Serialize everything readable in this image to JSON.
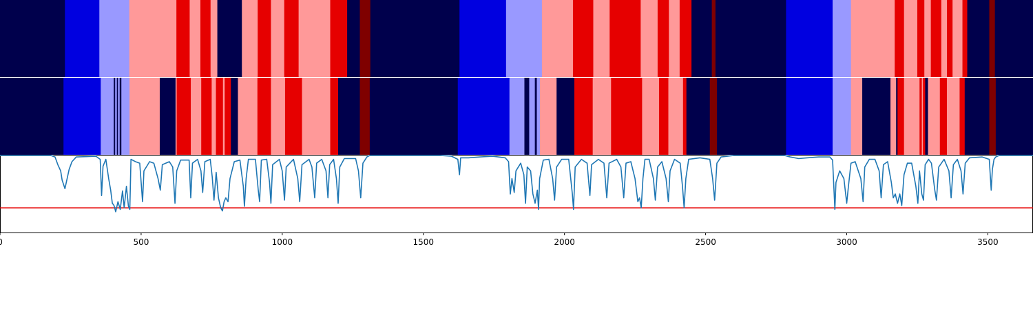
{
  "chart_data": {
    "type": "segmentation-strips-with-line",
    "xlim": [
      0,
      3660
    ],
    "x_ticks": [
      0,
      500,
      1000,
      1500,
      2000,
      2500,
      3000,
      3500
    ],
    "tick_labels": [
      "0",
      "500",
      "1000",
      "1500",
      "2000",
      "2500",
      "3000",
      "3500"
    ],
    "colors": {
      "navy": "#00004c",
      "blue": "#0000e0",
      "lightblue": "#9999ff",
      "pink": "#ff9999",
      "red": "#e60000",
      "darkred": "#7f0000",
      "line": "#1f77b4",
      "threshold": "#e60000"
    },
    "strip_top": [
      [
        0,
        230,
        "navy"
      ],
      [
        230,
        352,
        "blue"
      ],
      [
        352,
        458,
        "lightblue"
      ],
      [
        458,
        625,
        "pink"
      ],
      [
        625,
        672,
        "red"
      ],
      [
        672,
        710,
        "pink"
      ],
      [
        710,
        746,
        "red"
      ],
      [
        746,
        770,
        "pink"
      ],
      [
        770,
        857,
        "navy"
      ],
      [
        857,
        913,
        "pink"
      ],
      [
        913,
        960,
        "red"
      ],
      [
        960,
        1007,
        "pink"
      ],
      [
        1007,
        1058,
        "red"
      ],
      [
        1058,
        1170,
        "pink"
      ],
      [
        1170,
        1230,
        "red"
      ],
      [
        1230,
        1275,
        "navy"
      ],
      [
        1275,
        1312,
        "darkred"
      ],
      [
        1312,
        1628,
        "navy"
      ],
      [
        1628,
        1793,
        "blue"
      ],
      [
        1793,
        1920,
        "lightblue"
      ],
      [
        1920,
        2030,
        "pink"
      ],
      [
        2030,
        2102,
        "red"
      ],
      [
        2102,
        2160,
        "pink"
      ],
      [
        2160,
        2270,
        "red"
      ],
      [
        2270,
        2330,
        "pink"
      ],
      [
        2330,
        2370,
        "red"
      ],
      [
        2370,
        2408,
        "pink"
      ],
      [
        2408,
        2450,
        "red"
      ],
      [
        2450,
        2522,
        "navy"
      ],
      [
        2522,
        2535,
        "darkred"
      ],
      [
        2535,
        2785,
        "navy"
      ],
      [
        2785,
        2950,
        "blue"
      ],
      [
        2950,
        3015,
        "lightblue"
      ],
      [
        3015,
        3170,
        "pink"
      ],
      [
        3170,
        3203,
        "red"
      ],
      [
        3203,
        3250,
        "pink"
      ],
      [
        3250,
        3275,
        "red"
      ],
      [
        3275,
        3298,
        "pink"
      ],
      [
        3298,
        3335,
        "red"
      ],
      [
        3335,
        3355,
        "pink"
      ],
      [
        3355,
        3375,
        "red"
      ],
      [
        3375,
        3410,
        "pink"
      ],
      [
        3410,
        3427,
        "red"
      ],
      [
        3427,
        3505,
        "navy"
      ],
      [
        3505,
        3525,
        "darkred"
      ],
      [
        3525,
        3660,
        "navy"
      ]
    ],
    "strip_bottom": [
      [
        0,
        225,
        "navy"
      ],
      [
        225,
        357,
        "blue"
      ],
      [
        357,
        403,
        "lightblue"
      ],
      [
        403,
        408,
        "navy"
      ],
      [
        408,
        414,
        "lightblue"
      ],
      [
        414,
        418,
        "navy"
      ],
      [
        418,
        424,
        "lightblue"
      ],
      [
        424,
        430,
        "navy"
      ],
      [
        430,
        459,
        "lightblue"
      ],
      [
        459,
        566,
        "pink"
      ],
      [
        566,
        622,
        "navy"
      ],
      [
        622,
        626,
        "pink"
      ],
      [
        626,
        676,
        "red"
      ],
      [
        676,
        713,
        "pink"
      ],
      [
        713,
        750,
        "red"
      ],
      [
        750,
        765,
        "pink"
      ],
      [
        765,
        790,
        "red"
      ],
      [
        790,
        796,
        "pink"
      ],
      [
        796,
        818,
        "red"
      ],
      [
        818,
        843,
        "navy"
      ],
      [
        843,
        912,
        "pink"
      ],
      [
        912,
        960,
        "red"
      ],
      [
        960,
        1010,
        "pink"
      ],
      [
        1010,
        1070,
        "red"
      ],
      [
        1070,
        1170,
        "pink"
      ],
      [
        1170,
        1198,
        "red"
      ],
      [
        1198,
        1275,
        "navy"
      ],
      [
        1275,
        1310,
        "darkred"
      ],
      [
        1310,
        1622,
        "navy"
      ],
      [
        1622,
        1805,
        "blue"
      ],
      [
        1805,
        1858,
        "lightblue"
      ],
      [
        1858,
        1875,
        "navy"
      ],
      [
        1875,
        1895,
        "lightblue"
      ],
      [
        1895,
        1902,
        "navy"
      ],
      [
        1902,
        1913,
        "lightblue"
      ],
      [
        1913,
        1972,
        "pink"
      ],
      [
        1972,
        2035,
        "navy"
      ],
      [
        2035,
        2100,
        "red"
      ],
      [
        2100,
        2165,
        "pink"
      ],
      [
        2165,
        2275,
        "red"
      ],
      [
        2275,
        2335,
        "pink"
      ],
      [
        2335,
        2368,
        "red"
      ],
      [
        2368,
        2420,
        "pink"
      ],
      [
        2420,
        2432,
        "red"
      ],
      [
        2432,
        2515,
        "navy"
      ],
      [
        2515,
        2540,
        "darkred"
      ],
      [
        2540,
        2785,
        "navy"
      ],
      [
        2785,
        2950,
        "blue"
      ],
      [
        2950,
        3015,
        "lightblue"
      ],
      [
        3015,
        3055,
        "pink"
      ],
      [
        3055,
        3155,
        "navy"
      ],
      [
        3155,
        3175,
        "pink"
      ],
      [
        3175,
        3180,
        "navy"
      ],
      [
        3180,
        3203,
        "red"
      ],
      [
        3203,
        3258,
        "pink"
      ],
      [
        3258,
        3266,
        "red"
      ],
      [
        3266,
        3270,
        "pink"
      ],
      [
        3270,
        3278,
        "red"
      ],
      [
        3278,
        3288,
        "navy"
      ],
      [
        3288,
        3330,
        "pink"
      ],
      [
        3330,
        3355,
        "red"
      ],
      [
        3355,
        3400,
        "pink"
      ],
      [
        3400,
        3418,
        "red"
      ],
      [
        3418,
        3505,
        "navy"
      ],
      [
        3505,
        3528,
        "darkred"
      ],
      [
        3528,
        3660,
        "navy"
      ]
    ],
    "threshold_y": 0.68,
    "line_points": [
      [
        0,
        0.0
      ],
      [
        180,
        0.0
      ],
      [
        195,
        0.02
      ],
      [
        205,
        0.12
      ],
      [
        215,
        0.2
      ],
      [
        220,
        0.32
      ],
      [
        230,
        0.43
      ],
      [
        245,
        0.18
      ],
      [
        255,
        0.08
      ],
      [
        270,
        0.02
      ],
      [
        340,
        0.01
      ],
      [
        355,
        0.05
      ],
      [
        360,
        0.52
      ],
      [
        365,
        0.14
      ],
      [
        375,
        0.05
      ],
      [
        385,
        0.3
      ],
      [
        392,
        0.45
      ],
      [
        398,
        0.62
      ],
      [
        404,
        0.65
      ],
      [
        410,
        0.73
      ],
      [
        418,
        0.6
      ],
      [
        426,
        0.7
      ],
      [
        434,
        0.46
      ],
      [
        440,
        0.68
      ],
      [
        448,
        0.4
      ],
      [
        455,
        0.66
      ],
      [
        460,
        0.7
      ],
      [
        464,
        0.05
      ],
      [
        480,
        0.08
      ],
      [
        495,
        0.1
      ],
      [
        505,
        0.6
      ],
      [
        510,
        0.2
      ],
      [
        530,
        0.08
      ],
      [
        545,
        0.1
      ],
      [
        560,
        0.3
      ],
      [
        568,
        0.45
      ],
      [
        575,
        0.12
      ],
      [
        600,
        0.08
      ],
      [
        612,
        0.15
      ],
      [
        620,
        0.62
      ],
      [
        626,
        0.2
      ],
      [
        640,
        0.06
      ],
      [
        670,
        0.06
      ],
      [
        676,
        0.55
      ],
      [
        682,
        0.1
      ],
      [
        700,
        0.05
      ],
      [
        712,
        0.2
      ],
      [
        718,
        0.48
      ],
      [
        726,
        0.08
      ],
      [
        745,
        0.05
      ],
      [
        752,
        0.28
      ],
      [
        758,
        0.58
      ],
      [
        766,
        0.22
      ],
      [
        774,
        0.55
      ],
      [
        782,
        0.68
      ],
      [
        788,
        0.72
      ],
      [
        794,
        0.6
      ],
      [
        800,
        0.55
      ],
      [
        808,
        0.6
      ],
      [
        815,
        0.3
      ],
      [
        830,
        0.08
      ],
      [
        850,
        0.06
      ],
      [
        862,
        0.4
      ],
      [
        866,
        0.66
      ],
      [
        872,
        0.3
      ],
      [
        880,
        0.05
      ],
      [
        905,
        0.05
      ],
      [
        915,
        0.45
      ],
      [
        920,
        0.6
      ],
      [
        926,
        0.06
      ],
      [
        945,
        0.05
      ],
      [
        955,
        0.35
      ],
      [
        960,
        0.62
      ],
      [
        966,
        0.12
      ],
      [
        990,
        0.05
      ],
      [
        1000,
        0.2
      ],
      [
        1008,
        0.58
      ],
      [
        1014,
        0.15
      ],
      [
        1040,
        0.05
      ],
      [
        1055,
        0.3
      ],
      [
        1062,
        0.6
      ],
      [
        1070,
        0.12
      ],
      [
        1095,
        0.05
      ],
      [
        1105,
        0.15
      ],
      [
        1115,
        0.55
      ],
      [
        1122,
        0.1
      ],
      [
        1140,
        0.05
      ],
      [
        1155,
        0.2
      ],
      [
        1162,
        0.55
      ],
      [
        1168,
        0.12
      ],
      [
        1182,
        0.05
      ],
      [
        1192,
        0.3
      ],
      [
        1198,
        0.62
      ],
      [
        1204,
        0.15
      ],
      [
        1220,
        0.04
      ],
      [
        1260,
        0.04
      ],
      [
        1270,
        0.2
      ],
      [
        1278,
        0.55
      ],
      [
        1286,
        0.1
      ],
      [
        1300,
        0.02
      ],
      [
        1310,
        0.0
      ],
      [
        1560,
        0.0
      ],
      [
        1600,
        0.01
      ],
      [
        1622,
        0.05
      ],
      [
        1628,
        0.25
      ],
      [
        1632,
        0.03
      ],
      [
        1660,
        0.03
      ],
      [
        1700,
        0.02
      ],
      [
        1745,
        0.01
      ],
      [
        1790,
        0.03
      ],
      [
        1802,
        0.08
      ],
      [
        1808,
        0.5
      ],
      [
        1814,
        0.3
      ],
      [
        1822,
        0.48
      ],
      [
        1828,
        0.2
      ],
      [
        1845,
        0.1
      ],
      [
        1856,
        0.25
      ],
      [
        1862,
        0.62
      ],
      [
        1868,
        0.15
      ],
      [
        1880,
        0.2
      ],
      [
        1888,
        0.5
      ],
      [
        1896,
        0.62
      ],
      [
        1904,
        0.45
      ],
      [
        1908,
        0.7
      ],
      [
        1912,
        0.3
      ],
      [
        1925,
        0.06
      ],
      [
        1945,
        0.05
      ],
      [
        1958,
        0.3
      ],
      [
        1965,
        0.58
      ],
      [
        1972,
        0.15
      ],
      [
        1990,
        0.05
      ],
      [
        2015,
        0.05
      ],
      [
        2028,
        0.5
      ],
      [
        2032,
        0.7
      ],
      [
        2038,
        0.15
      ],
      [
        2060,
        0.05
      ],
      [
        2080,
        0.1
      ],
      [
        2090,
        0.52
      ],
      [
        2096,
        0.12
      ],
      [
        2120,
        0.05
      ],
      [
        2140,
        0.1
      ],
      [
        2150,
        0.55
      ],
      [
        2158,
        0.1
      ],
      [
        2185,
        0.05
      ],
      [
        2200,
        0.15
      ],
      [
        2210,
        0.55
      ],
      [
        2218,
        0.1
      ],
      [
        2235,
        0.08
      ],
      [
        2250,
        0.3
      ],
      [
        2260,
        0.6
      ],
      [
        2266,
        0.55
      ],
      [
        2272,
        0.68
      ],
      [
        2278,
        0.3
      ],
      [
        2285,
        0.05
      ],
      [
        2300,
        0.05
      ],
      [
        2315,
        0.3
      ],
      [
        2322,
        0.58
      ],
      [
        2330,
        0.15
      ],
      [
        2345,
        0.08
      ],
      [
        2360,
        0.3
      ],
      [
        2368,
        0.6
      ],
      [
        2374,
        0.2
      ],
      [
        2390,
        0.05
      ],
      [
        2410,
        0.1
      ],
      [
        2418,
        0.4
      ],
      [
        2424,
        0.68
      ],
      [
        2430,
        0.3
      ],
      [
        2440,
        0.05
      ],
      [
        2480,
        0.03
      ],
      [
        2515,
        0.05
      ],
      [
        2525,
        0.3
      ],
      [
        2532,
        0.58
      ],
      [
        2540,
        0.1
      ],
      [
        2555,
        0.02
      ],
      [
        2600,
        0.0
      ],
      [
        2780,
        0.0
      ],
      [
        2800,
        0.02
      ],
      [
        2830,
        0.04
      ],
      [
        2860,
        0.03
      ],
      [
        2900,
        0.02
      ],
      [
        2940,
        0.02
      ],
      [
        2950,
        0.06
      ],
      [
        2958,
        0.7
      ],
      [
        2962,
        0.35
      ],
      [
        2975,
        0.2
      ],
      [
        2990,
        0.3
      ],
      [
        3000,
        0.62
      ],
      [
        3006,
        0.4
      ],
      [
        3015,
        0.1
      ],
      [
        3030,
        0.08
      ],
      [
        3050,
        0.3
      ],
      [
        3058,
        0.6
      ],
      [
        3064,
        0.15
      ],
      [
        3080,
        0.05
      ],
      [
        3100,
        0.05
      ],
      [
        3115,
        0.2
      ],
      [
        3122,
        0.55
      ],
      [
        3130,
        0.12
      ],
      [
        3145,
        0.08
      ],
      [
        3158,
        0.35
      ],
      [
        3165,
        0.55
      ],
      [
        3172,
        0.5
      ],
      [
        3180,
        0.62
      ],
      [
        3188,
        0.5
      ],
      [
        3195,
        0.65
      ],
      [
        3203,
        0.25
      ],
      [
        3215,
        0.1
      ],
      [
        3230,
        0.1
      ],
      [
        3245,
        0.4
      ],
      [
        3252,
        0.62
      ],
      [
        3258,
        0.2
      ],
      [
        3266,
        0.5
      ],
      [
        3272,
        0.58
      ],
      [
        3278,
        0.12
      ],
      [
        3290,
        0.05
      ],
      [
        3300,
        0.1
      ],
      [
        3312,
        0.45
      ],
      [
        3318,
        0.58
      ],
      [
        3326,
        0.15
      ],
      [
        3345,
        0.05
      ],
      [
        3362,
        0.2
      ],
      [
        3370,
        0.55
      ],
      [
        3378,
        0.12
      ],
      [
        3392,
        0.05
      ],
      [
        3405,
        0.2
      ],
      [
        3412,
        0.5
      ],
      [
        3420,
        0.1
      ],
      [
        3435,
        0.03
      ],
      [
        3480,
        0.02
      ],
      [
        3505,
        0.05
      ],
      [
        3512,
        0.45
      ],
      [
        3516,
        0.18
      ],
      [
        3522,
        0.05
      ],
      [
        3528,
        0.02
      ],
      [
        3540,
        0.0
      ],
      [
        3660,
        0.0
      ]
    ]
  }
}
